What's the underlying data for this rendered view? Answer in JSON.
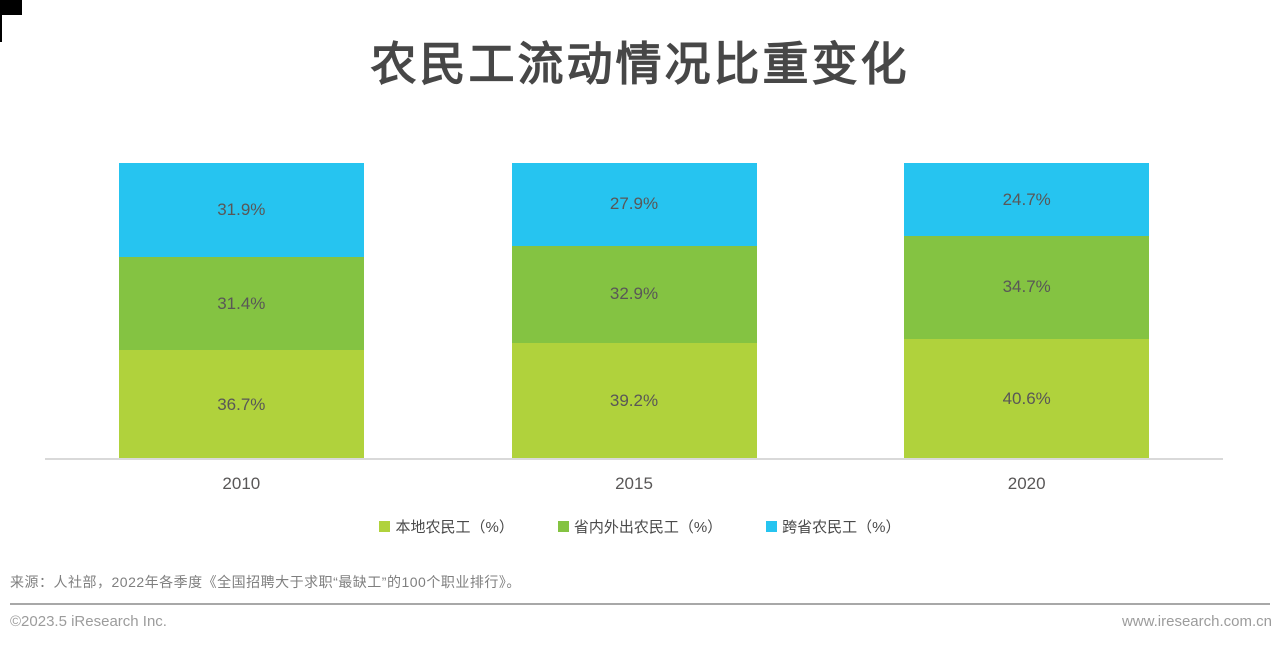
{
  "title": {
    "text": "农民工流动情况比重变化",
    "color": "#474747"
  },
  "chart_data": {
    "type": "bar",
    "stacked": true,
    "orientation": "vertical",
    "categories": [
      "2010",
      "2015",
      "2020"
    ],
    "series": [
      {
        "name": "本地农民工（%）",
        "color": "#B0D23C",
        "values": [
          36.7,
          39.2,
          40.6
        ],
        "labels": [
          "36.7%",
          "39.2%",
          "40.6%"
        ]
      },
      {
        "name": "省内外出农民工（%）",
        "color": "#84C342",
        "values": [
          31.4,
          32.9,
          34.7
        ],
        "labels": [
          "31.4%",
          "32.9%",
          "34.7%"
        ]
      },
      {
        "name": "跨省农民工（%）",
        "color": "#26C4F0",
        "values": [
          31.9,
          27.9,
          24.7
        ],
        "labels": [
          "31.9%",
          "27.9%",
          "24.7%"
        ]
      }
    ],
    "title": "农民工流动情况比重变化",
    "xlabel": "",
    "ylabel": "",
    "ylim": [
      0,
      100
    ],
    "grid": false,
    "legend_position": "bottom",
    "value_label_color": "#595757",
    "axis_label_color": "#595757",
    "axis_line_color": "#D9D9D9"
  },
  "source": {
    "text": "来源：人社部，2022年各季度《全国招聘大于求职“最缺工”的100个职业排行》。"
  },
  "footer": {
    "left": "©2023.5 iResearch Inc.",
    "right": "www.iresearch.com.cn"
  }
}
